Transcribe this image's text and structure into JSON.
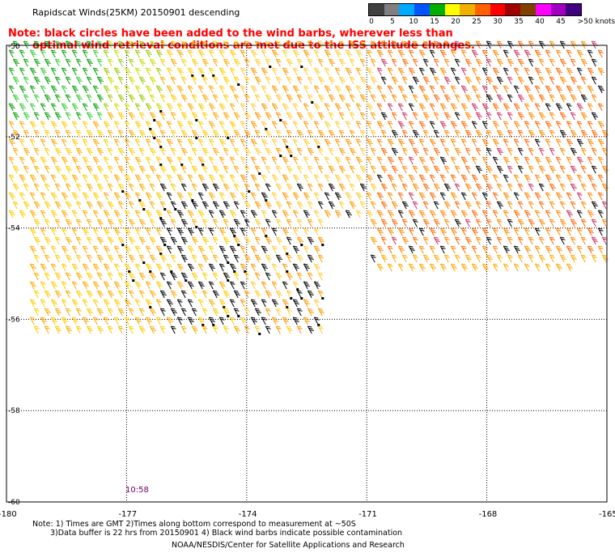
{
  "title": "Rapidscat Winds(25KM) 20150901 descending",
  "note_line1": "Note: black circles have been added to the wind barbs, wherever less than",
  "note_line2": "optimal wind retrieval conditions are met due to the ISS attitude changes.",
  "legend": {
    "labels": [
      "0",
      "5",
      "10",
      "15",
      "20",
      "25",
      "30",
      "35",
      "40",
      "45",
      ">50 knots"
    ],
    "colors": [
      "#404040",
      "#808080",
      "#00aaff",
      "#0055ff",
      "#00b000",
      "#ffff00",
      "#f0b000",
      "#ff6000",
      "#ff0000",
      "#a00000",
      "#804000",
      "#ff00ff",
      "#a000c0",
      "#400080"
    ]
  },
  "map": {
    "lat_labels": [
      "-50",
      "-52",
      "-54",
      "-56",
      "-58",
      "-60"
    ],
    "lon_labels": [
      "-180",
      "-177",
      "-174",
      "-171",
      "-168",
      "-165"
    ],
    "time_label": "10:58",
    "lat_range": [
      -60,
      -50
    ],
    "lon_range": [
      -180,
      -165
    ]
  },
  "footer": {
    "line1": "Note: 1) Times are GMT 2)Times along bottom correspond to measurement at ~50S",
    "line2": "3)Data buffer is 22 hrs from 20150901 4) Black wind barbs indicate possible contamination",
    "line3": "NOAA/NESDIS/Center for Satellite Applications and Research"
  }
}
